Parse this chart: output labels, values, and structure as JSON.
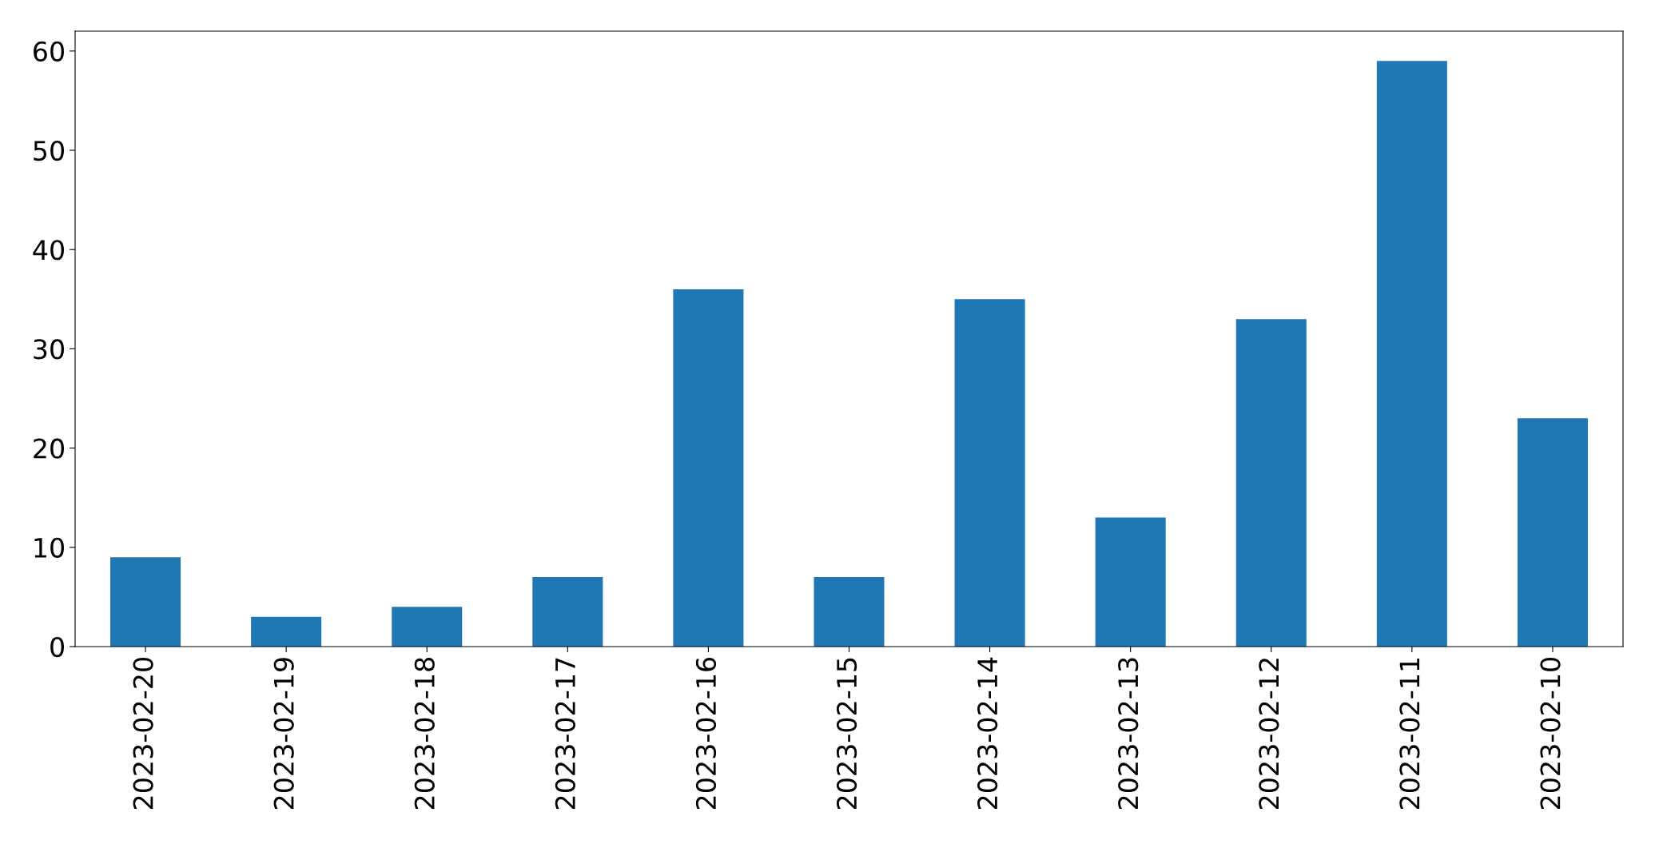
{
  "chart_data": {
    "type": "bar",
    "categories": [
      "2023-02-20",
      "2023-02-19",
      "2023-02-18",
      "2023-02-17",
      "2023-02-16",
      "2023-02-15",
      "2023-02-14",
      "2023-02-13",
      "2023-02-12",
      "2023-02-11",
      "2023-02-10"
    ],
    "values": [
      9,
      3,
      4,
      7,
      36,
      7,
      35,
      13,
      33,
      59,
      23
    ],
    "color": "#1f77b4",
    "ylim": [
      0,
      62
    ],
    "yticks": [
      0,
      10,
      20,
      30,
      40,
      50,
      60
    ],
    "grid": false,
    "legend": false
  }
}
